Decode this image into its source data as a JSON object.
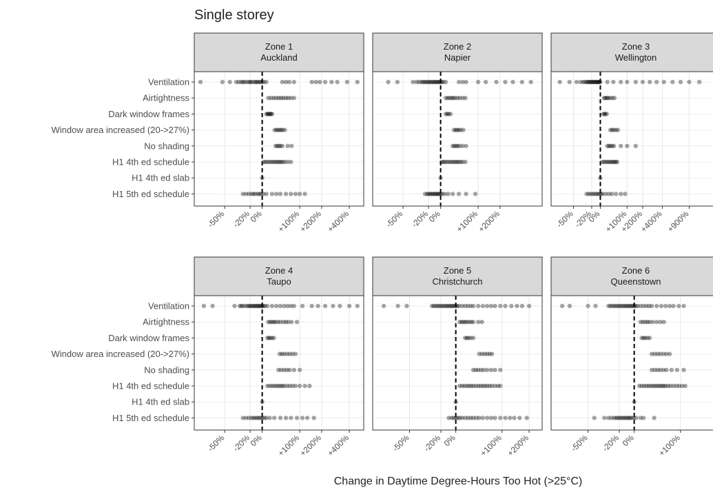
{
  "chart_data": {
    "type": "scatter",
    "title": "Single storey",
    "xlabel": "Change in Daytime Degree-Hours Too Hot (>25°C)",
    "ylabel": "",
    "categories": [
      "Ventilation",
      "Airtightness",
      "Dark window frames",
      "Window area increased (20->27%)",
      "No shading",
      "H1 4th ed schedule",
      "H1 4th ed slab",
      "H1 5th ed schedule"
    ],
    "reference_line": 0,
    "panels": [
      {
        "zone": "Zone 1",
        "city": "Auckland",
        "xlim": [
          -70,
          520
        ],
        "ticks": [
          "-50%",
          "-20%",
          "0%",
          "+100%",
          "+200%",
          "+400%"
        ],
        "tick_values": [
          -50,
          -20,
          0,
          100,
          200,
          400
        ],
        "points": [
          [
            -68,
            -52,
            -45,
            -38,
            -35,
            -32,
            -30,
            -28,
            -25,
            -22,
            -20,
            -18,
            -15,
            -12,
            -10,
            -8,
            -5,
            -3,
            0,
            3,
            8,
            45,
            55,
            65,
            80,
            150,
            170,
            190,
            220,
            260,
            300,
            380,
            480
          ],
          [
            12,
            18,
            24,
            30,
            36,
            42,
            48,
            55,
            62,
            70,
            80
          ],
          [
            8,
            10,
            12,
            14,
            16,
            18,
            20
          ],
          [
            26,
            30,
            34,
            38,
            42,
            46,
            52
          ],
          [
            28,
            32,
            36,
            40,
            45,
            60,
            72
          ],
          [
            3,
            6,
            10,
            14,
            18,
            22,
            26,
            30,
            34,
            38,
            42,
            46,
            52,
            60,
            70
          ],
          [
            0
          ],
          [
            -30,
            -26,
            -22,
            -18,
            -15,
            -12,
            -8,
            -5,
            -2,
            2,
            8,
            20,
            30,
            40,
            55,
            70,
            85,
            100,
            120
          ]
        ]
      },
      {
        "zone": "Zone 2",
        "city": "Napier",
        "xlim": [
          -70,
          520
        ],
        "ticks": [
          "-50%",
          "-20%",
          "0%",
          "+100%",
          "+200%"
        ],
        "tick_values": [
          -50,
          -20,
          0,
          100,
          200
        ],
        "points": [
          [
            -62,
            -55,
            -40,
            -36,
            -33,
            -30,
            -28,
            -26,
            -24,
            -22,
            -20,
            -18,
            -16,
            -14,
            -12,
            -10,
            -8,
            -6,
            -4,
            -2,
            0,
            2,
            5,
            10,
            40,
            50,
            60,
            100,
            130,
            180,
            230,
            280,
            350,
            430
          ],
          [
            10,
            14,
            18,
            22,
            26,
            30,
            36,
            42,
            50,
            58
          ],
          [
            10,
            13,
            16,
            20
          ],
          [
            28,
            32,
            36,
            40,
            45,
            52
          ],
          [
            25,
            29,
            33,
            37,
            42,
            50,
            60
          ],
          [
            2,
            5,
            8,
            12,
            16,
            20,
            24,
            28,
            32,
            36,
            40,
            45,
            50,
            58
          ],
          [
            0
          ],
          [
            -25,
            -22,
            -20,
            -18,
            -16,
            -14,
            -12,
            -10,
            -8,
            -6,
            -4,
            -2,
            0,
            3,
            8,
            15,
            25,
            40,
            60,
            90
          ]
        ]
      },
      {
        "zone": "Zone 3",
        "city": "Wellington",
        "xlim": [
          -70,
          2000
        ],
        "ticks": [
          "-50%",
          "-20%",
          "0%",
          "+100%",
          "+200%",
          "+400%",
          "+900%"
        ],
        "tick_values": [
          -50,
          -20,
          0,
          100,
          200,
          400,
          900
        ],
        "points": [
          [
            -65,
            -55,
            -46,
            -40,
            -36,
            -33,
            -30,
            -28,
            -26,
            -24,
            -22,
            -20,
            -18,
            -16,
            -14,
            -12,
            -10,
            -8,
            -6,
            -4,
            -2,
            0,
            20,
            40,
            70,
            100,
            150,
            200,
            260,
            330,
            420,
            550,
            700,
            900,
            1200
          ],
          [
            10,
            14,
            18,
            22,
            28,
            36,
            44
          ],
          [
            8,
            11,
            14,
            18
          ],
          [
            30,
            36,
            42,
            50,
            58
          ],
          [
            20,
            25,
            30,
            36,
            42,
            70,
            100,
            150
          ],
          [
            5,
            10,
            15,
            20,
            25,
            30,
            35,
            40,
            45,
            50,
            55
          ],
          [
            0
          ],
          [
            -30,
            -26,
            -22,
            -18,
            -14,
            -10,
            -6,
            -2,
            2,
            6,
            15,
            25,
            35,
            50,
            70,
            90
          ]
        ]
      },
      {
        "zone": "Zone 4",
        "city": "Taupo",
        "xlim": [
          -70,
          520
        ],
        "ticks": [
          "-50%",
          "-20%",
          "0%",
          "+100%",
          "+200%",
          "+400%"
        ],
        "tick_values": [
          -50,
          -20,
          0,
          100,
          200,
          400
        ],
        "points": [
          [
            -66,
            -60,
            -40,
            -34,
            -32,
            -30,
            -27,
            -24,
            -22,
            -20,
            -18,
            -16,
            -14,
            -12,
            -10,
            -8,
            -6,
            -4,
            -2,
            0,
            2,
            5,
            10,
            20,
            30,
            40,
            50,
            60,
            70,
            80,
            110,
            150,
            180,
            220,
            270,
            320,
            400,
            480
          ],
          [
            12,
            16,
            20,
            24,
            28,
            34,
            40,
            48,
            55,
            62,
            72,
            90
          ],
          [
            10,
            13,
            16,
            20,
            24
          ],
          [
            38,
            44,
            50,
            58,
            66,
            75,
            85
          ],
          [
            35,
            42,
            50,
            58,
            66,
            80,
            100
          ],
          [
            10,
            15,
            20,
            25,
            30,
            35,
            40,
            45,
            50,
            58,
            66,
            75,
            85,
            100,
            120,
            140
          ],
          [
            0
          ],
          [
            -30,
            -26,
            -22,
            -18,
            -15,
            -12,
            -9,
            -6,
            -3,
            0,
            4,
            8,
            15,
            25,
            40,
            55,
            70,
            90,
            110,
            130,
            160
          ]
        ]
      },
      {
        "zone": "Zone 5",
        "city": "Christchurch",
        "xlim": [
          -70,
          250
        ],
        "ticks": [
          "-50%",
          "-20%",
          "0%",
          "+100%",
          "+200%"
        ],
        "tick_values": [
          -50,
          -20,
          0,
          100,
          200
        ],
        "points": [
          [
            -66,
            -58,
            -52,
            -30,
            -28,
            -26,
            -24,
            -22,
            -20,
            -18,
            -16,
            -14,
            -12,
            -10,
            -8,
            -6,
            -4,
            -2,
            0,
            2,
            5,
            10,
            15,
            20,
            25,
            30,
            40,
            50,
            60,
            70,
            80,
            95,
            110,
            130,
            150,
            170,
            200
          ],
          [
            6,
            9,
            12,
            15,
            18,
            22,
            26,
            30,
            40,
            48
          ],
          [
            15,
            18,
            21,
            25,
            30
          ],
          [
            42,
            48,
            54,
            60,
            66,
            72
          ],
          [
            30,
            35,
            40,
            46,
            52,
            60,
            70,
            80,
            95
          ],
          [
            6,
            10,
            14,
            18,
            22,
            26,
            30,
            35,
            40,
            45,
            50,
            55,
            60,
            66,
            72,
            80,
            88,
            95
          ],
          [
            0
          ],
          [
            -10,
            -6,
            -3,
            0,
            3,
            6,
            10,
            15,
            20,
            25,
            30,
            36,
            42,
            50,
            60,
            70,
            80,
            95,
            110,
            125,
            140,
            160,
            190
          ]
        ]
      },
      {
        "zone": "Zone 6",
        "city": "Queenstown",
        "xlim": [
          -70,
          250
        ],
        "ticks": [
          "-50%",
          "-20%",
          "0%",
          "+100%"
        ],
        "tick_values": [
          -50,
          -20,
          0,
          100
        ],
        "points": [
          [
            -66,
            -62,
            -50,
            -44,
            -32,
            -30,
            -28,
            -26,
            -24,
            -22,
            -20,
            -18,
            -16,
            -14,
            -12,
            -10,
            -8,
            -6,
            -4,
            -2,
            0,
            2,
            5,
            10,
            15,
            20,
            25,
            30,
            40,
            50,
            60,
            70,
            80,
            95,
            110
          ],
          [
            10,
            14,
            18,
            22,
            26,
            32,
            40,
            48,
            56
          ],
          [
            12,
            15,
            18,
            22,
            26
          ],
          [
            30,
            36,
            42,
            48,
            55,
            62,
            70
          ],
          [
            30,
            36,
            42,
            48,
            55,
            62,
            75,
            90,
            110
          ],
          [
            8,
            12,
            16,
            20,
            24,
            28,
            32,
            36,
            40,
            44,
            48,
            52,
            56,
            60,
            66,
            72,
            80,
            88,
            96,
            105,
            115
          ],
          [
            0
          ],
          [
            -45,
            -36,
            -32,
            -29,
            -26,
            -24,
            -22,
            -20,
            -18,
            -16,
            -14,
            -12,
            -10,
            -8,
            -6,
            -4,
            -1,
            3,
            10,
            15,
            35
          ]
        ]
      }
    ]
  }
}
